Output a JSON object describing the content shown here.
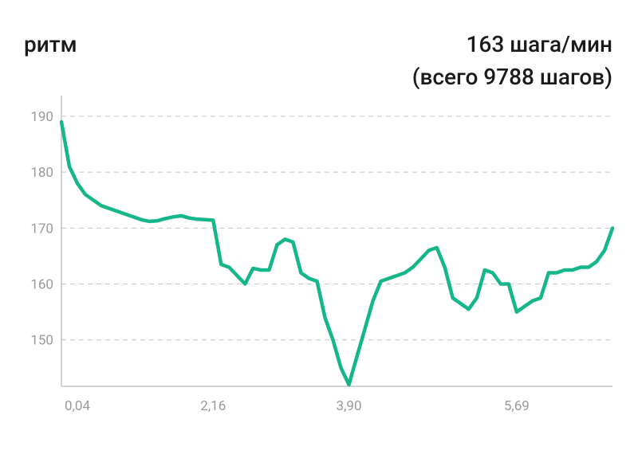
{
  "chart_data": {
    "type": "line",
    "title": "ритм",
    "subtitle": [
      "163 шага/мин",
      "(всего 9788 шагов)"
    ],
    "categories": [
      null,
      null,
      "0,04",
      null,
      null,
      null,
      null,
      null,
      null,
      null,
      null,
      null,
      null,
      null,
      null,
      null,
      null,
      null,
      null,
      "2,16",
      null,
      null,
      null,
      null,
      null,
      null,
      null,
      null,
      null,
      null,
      null,
      null,
      null,
      null,
      null,
      null,
      "3,90",
      null,
      null,
      null,
      null,
      null,
      null,
      null,
      null,
      null,
      null,
      null,
      null,
      null,
      null,
      null,
      null,
      null,
      null,
      null,
      null,
      "5,69",
      null,
      null,
      null,
      null,
      null,
      null,
      null,
      null,
      null,
      null,
      null,
      null
    ],
    "series": [
      {
        "name": "ритм",
        "color": "#16b68b",
        "values": [
          189,
          181,
          178,
          176,
          175,
          174,
          173.5,
          173,
          172.5,
          172,
          171.5,
          171.2,
          171.3,
          171.7,
          172,
          172.2,
          171.8,
          171.6,
          171.5,
          171.4,
          163.5,
          163,
          161.5,
          160,
          162.8,
          162.5,
          162.5,
          167,
          168,
          167.5,
          162,
          161,
          160.5,
          154,
          150,
          145,
          142,
          147,
          152,
          157,
          160.5,
          161,
          161.5,
          162,
          163,
          164.5,
          166,
          166.5,
          163,
          157.5,
          156.5,
          155.5,
          157.5,
          162.5,
          162,
          160,
          160,
          155,
          156,
          157,
          157.5,
          162,
          162,
          162.5,
          162.5,
          163,
          163,
          164,
          166,
          170
        ]
      }
    ],
    "ylim": [
      141.7,
      193.7
    ],
    "yticks": [
      150,
      160,
      170,
      180,
      190
    ],
    "grid": true
  }
}
